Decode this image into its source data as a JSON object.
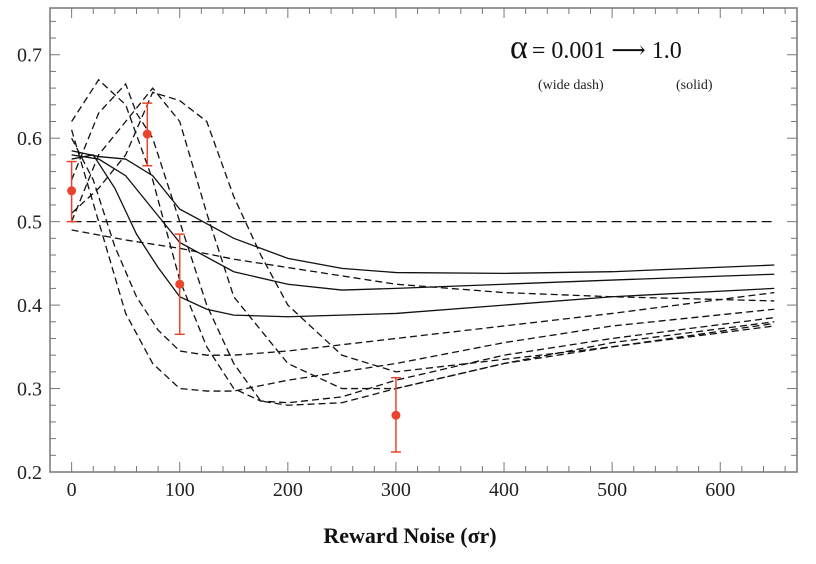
{
  "chart_data": {
    "type": "line",
    "title": "",
    "xlabel": "Reward Noise (σr)",
    "ylabel": "",
    "xlim": [
      -20,
      671
    ],
    "ylim": [
      0.2,
      0.756
    ],
    "x_ticks": [
      0,
      100,
      200,
      300,
      400,
      500,
      600
    ],
    "x_tick_labels": [
      "0",
      "100",
      "200",
      "300",
      "400",
      "500",
      "600"
    ],
    "y_ticks": [
      0.2,
      0.3,
      0.4,
      0.5,
      0.6,
      0.7
    ],
    "y_tick_labels": [
      "0.2",
      "0.3",
      "0.4",
      "0.5",
      "0.6",
      "0.7"
    ],
    "grid": false,
    "legend": {
      "placement": "top-right",
      "alpha_symbol": "α",
      "main_text": "= 0.001",
      "arrow": "⟶",
      "end_text": "1.0",
      "start_note": "(wide dash)",
      "end_note": "(solid)"
    },
    "series": [
      {
        "name": "alpha-0.001",
        "style": "dashed",
        "x": [
          0,
          650
        ],
        "y": [
          0.5,
          0.5
        ]
      },
      {
        "name": "alpha-dash-2",
        "style": "dashed",
        "x": [
          0,
          50,
          100,
          150,
          200,
          250,
          300,
          400,
          500,
          650
        ],
        "y": [
          0.49,
          0.478,
          0.468,
          0.455,
          0.445,
          0.435,
          0.425,
          0.415,
          0.41,
          0.405
        ]
      },
      {
        "name": "alpha-dash-3",
        "style": "dashed",
        "x": [
          0,
          25,
          50,
          75,
          100,
          125,
          150,
          175,
          200,
          250,
          300,
          400,
          500,
          650
        ],
        "y": [
          0.51,
          0.54,
          0.58,
          0.655,
          0.645,
          0.62,
          0.53,
          0.46,
          0.4,
          0.34,
          0.32,
          0.335,
          0.35,
          0.375
        ]
      },
      {
        "name": "alpha-dash-4",
        "style": "dashed",
        "x": [
          0,
          25,
          50,
          75,
          100,
          125,
          150,
          200,
          250,
          300,
          400,
          500,
          650
        ],
        "y": [
          0.5,
          0.58,
          0.62,
          0.66,
          0.62,
          0.51,
          0.41,
          0.33,
          0.3,
          0.3,
          0.33,
          0.35,
          0.378
        ]
      },
      {
        "name": "alpha-dash-5",
        "style": "dashed",
        "x": [
          0,
          25,
          50,
          60,
          75,
          100,
          125,
          150,
          175,
          200,
          250,
          300,
          400,
          500,
          650
        ],
        "y": [
          0.55,
          0.63,
          0.665,
          0.63,
          0.6,
          0.5,
          0.4,
          0.33,
          0.285,
          0.28,
          0.283,
          0.3,
          0.33,
          0.355,
          0.38
        ]
      },
      {
        "name": "alpha-dash-6",
        "style": "dashed",
        "x": [
          0,
          25,
          50,
          75,
          100,
          125,
          150,
          175,
          200,
          250,
          300,
          400,
          500,
          650
        ],
        "y": [
          0.62,
          0.67,
          0.64,
          0.55,
          0.43,
          0.35,
          0.3,
          0.285,
          0.283,
          0.29,
          0.31,
          0.34,
          0.36,
          0.385
        ]
      },
      {
        "name": "alpha-dash-7",
        "style": "dashed",
        "x": [
          0,
          25,
          50,
          75,
          100,
          125,
          150,
          200,
          300,
          400,
          500,
          650
        ],
        "y": [
          0.61,
          0.5,
          0.39,
          0.33,
          0.3,
          0.297,
          0.297,
          0.31,
          0.33,
          0.355,
          0.375,
          0.395
        ]
      },
      {
        "name": "alpha-dash-8",
        "style": "dashed",
        "x": [
          0,
          20,
          40,
          60,
          80,
          100,
          125,
          150,
          200,
          300,
          400,
          500,
          650
        ],
        "y": [
          0.6,
          0.55,
          0.47,
          0.41,
          0.37,
          0.345,
          0.34,
          0.34,
          0.345,
          0.36,
          0.375,
          0.39,
          0.415
        ]
      },
      {
        "name": "alpha-solid-1",
        "style": "solid",
        "x": [
          0,
          20,
          40,
          60,
          80,
          100,
          125,
          150,
          200,
          300,
          400,
          500,
          650
        ],
        "y": [
          0.575,
          0.58,
          0.54,
          0.485,
          0.445,
          0.41,
          0.395,
          0.388,
          0.386,
          0.39,
          0.4,
          0.41,
          0.42
        ]
      },
      {
        "name": "alpha-solid-2",
        "style": "solid",
        "x": [
          0,
          25,
          50,
          75,
          100,
          150,
          200,
          250,
          300,
          400,
          500,
          650
        ],
        "y": [
          0.58,
          0.575,
          0.555,
          0.515,
          0.475,
          0.44,
          0.425,
          0.418,
          0.42,
          0.425,
          0.43,
          0.437
        ]
      },
      {
        "name": "alpha-solid-3",
        "style": "solid",
        "x": [
          0,
          25,
          50,
          75,
          100,
          150,
          200,
          250,
          300,
          400,
          500,
          650
        ],
        "y": [
          0.585,
          0.578,
          0.575,
          0.555,
          0.515,
          0.48,
          0.456,
          0.444,
          0.439,
          0.438,
          0.44,
          0.448
        ]
      }
    ],
    "observed": {
      "name": "data",
      "color": "#e8452c",
      "x": [
        0,
        70,
        100,
        300
      ],
      "y": [
        0.537,
        0.605,
        0.425,
        0.268
      ],
      "err_low": [
        0.5,
        0.567,
        0.365,
        0.224
      ],
      "err_high": [
        0.572,
        0.642,
        0.485,
        0.313
      ]
    }
  }
}
